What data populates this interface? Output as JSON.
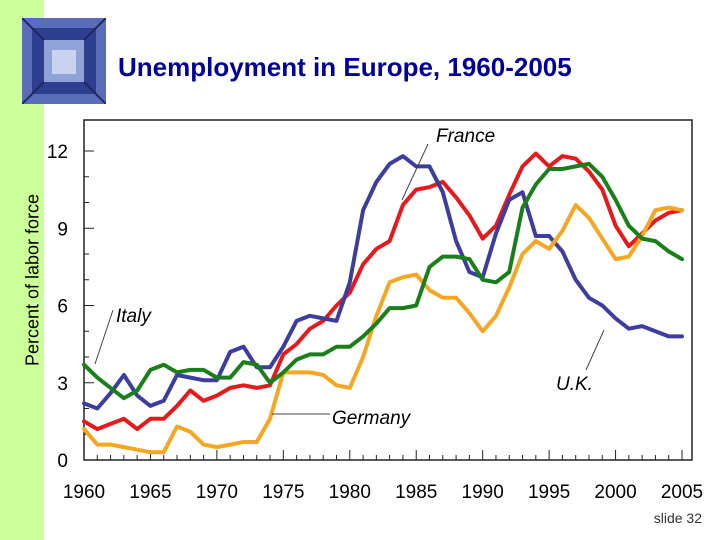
{
  "slide": {
    "title": "Unemployment in Europe, 1960-2005",
    "number": "slide 32"
  },
  "colors": {
    "sidebar": "#ccff99",
    "title": "#000099",
    "france": "#e8191c",
    "uk": "#3d3d9e",
    "germany": "#f5a623",
    "italy": "#1a7f1a"
  },
  "chart_data": {
    "type": "line",
    "title": "Unemployment in Europe, 1960-2005",
    "xlabel": "",
    "ylabel": "Percent of labor force",
    "xlim": [
      1960,
      2005
    ],
    "ylim": [
      0,
      12
    ],
    "x_ticks": [
      "1960",
      "1965",
      "1970",
      "1975",
      "1980",
      "1985",
      "1990",
      "1995",
      "2000",
      "2005"
    ],
    "y_ticks": [
      "0",
      "3",
      "6",
      "9",
      "12"
    ],
    "x": [
      1960,
      1961,
      1962,
      1963,
      1964,
      1965,
      1966,
      1967,
      1968,
      1969,
      1970,
      1971,
      1972,
      1973,
      1974,
      1975,
      1976,
      1977,
      1978,
      1979,
      1980,
      1981,
      1982,
      1983,
      1984,
      1985,
      1986,
      1987,
      1988,
      1989,
      1990,
      1991,
      1992,
      1993,
      1994,
      1995,
      1996,
      1997,
      1998,
      1999,
      2000,
      2001,
      2002,
      2003,
      2004,
      2005
    ],
    "series": [
      {
        "name": "France",
        "color": "#e8191c",
        "values": [
          1.5,
          1.2,
          1.4,
          1.6,
          1.2,
          1.6,
          1.6,
          2.1,
          2.7,
          2.3,
          2.5,
          2.8,
          2.9,
          2.8,
          2.9,
          4.1,
          4.5,
          5.1,
          5.4,
          6.0,
          6.5,
          7.6,
          8.2,
          8.5,
          9.9,
          10.5,
          10.6,
          10.8,
          10.2,
          9.5,
          8.6,
          9.1,
          10.3,
          11.4,
          11.9,
          11.4,
          11.8,
          11.7,
          11.2,
          10.5,
          9.1,
          8.3,
          8.8,
          9.3,
          9.6,
          9.7
        ]
      },
      {
        "name": "U.K.",
        "color": "#3d3d9e",
        "values": [
          2.2,
          2.0,
          2.6,
          3.3,
          2.5,
          2.1,
          2.3,
          3.3,
          3.2,
          3.1,
          3.1,
          4.2,
          4.4,
          3.6,
          3.6,
          4.4,
          5.4,
          5.6,
          5.5,
          5.4,
          6.9,
          9.7,
          10.8,
          11.5,
          11.8,
          11.4,
          11.4,
          10.4,
          8.5,
          7.3,
          7.1,
          8.8,
          10.1,
          10.4,
          8.7,
          8.7,
          8.1,
          7.0,
          6.3,
          6.0,
          5.5,
          5.1,
          5.2,
          5.0,
          4.8,
          4.8
        ]
      },
      {
        "name": "Germany",
        "color": "#f5a623",
        "values": [
          1.2,
          0.6,
          0.6,
          0.5,
          0.4,
          0.3,
          0.3,
          1.3,
          1.1,
          0.6,
          0.5,
          0.6,
          0.7,
          0.7,
          1.6,
          3.4,
          3.4,
          3.4,
          3.3,
          2.9,
          2.8,
          4.0,
          5.6,
          6.9,
          7.1,
          7.2,
          6.6,
          6.3,
          6.3,
          5.7,
          5.0,
          5.6,
          6.7,
          8.0,
          8.5,
          8.2,
          8.9,
          9.9,
          9.4,
          8.6,
          7.8,
          7.9,
          8.7,
          9.7,
          9.8,
          9.7
        ]
      },
      {
        "name": "Italy",
        "color": "#1a7f1a",
        "values": [
          3.7,
          3.2,
          2.8,
          2.4,
          2.7,
          3.5,
          3.7,
          3.4,
          3.5,
          3.5,
          3.2,
          3.2,
          3.8,
          3.7,
          3.0,
          3.4,
          3.9,
          4.1,
          4.1,
          4.4,
          4.4,
          4.8,
          5.3,
          5.9,
          5.9,
          6.0,
          7.5,
          7.9,
          7.9,
          7.8,
          7.0,
          6.9,
          7.3,
          9.8,
          10.7,
          11.3,
          11.3,
          11.4,
          11.5,
          11.0,
          10.1,
          9.1,
          8.6,
          8.5,
          8.1,
          7.8
        ]
      }
    ],
    "annotations": [
      "France",
      "Italy",
      "U.K.",
      "Germany"
    ],
    "grid": false,
    "legend": "direct-labels"
  }
}
